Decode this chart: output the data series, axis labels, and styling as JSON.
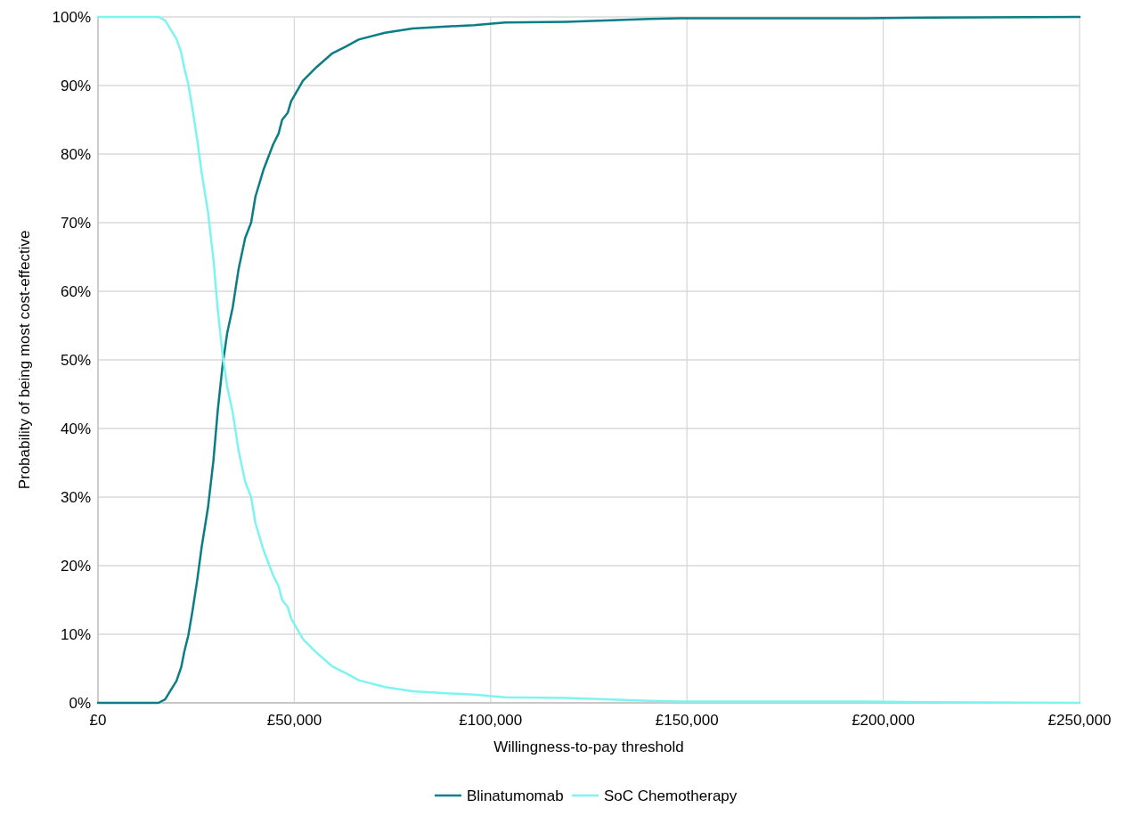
{
  "chart_data": {
    "type": "line",
    "xlabel": "Willingness-to-pay  threshold",
    "ylabel": "Probability of being most cost-effective",
    "x": [
      0,
      15400,
      17100,
      18900,
      20000,
      21200,
      22000,
      23000,
      24100,
      25300,
      26400,
      28000,
      29400,
      30500,
      31700,
      32900,
      34300,
      35800,
      37500,
      39000,
      40100,
      42200,
      44600,
      46000,
      46900,
      48300,
      49200,
      52200,
      55700,
      59700,
      63200,
      66400,
      73100,
      80100,
      88800,
      95800,
      103700,
      119400,
      130800,
      140400,
      148200,
      195000,
      212000,
      250000
    ],
    "series": [
      {
        "name": "Blinatumomab",
        "color": "#0b7d84",
        "values": [
          0,
          0,
          0.5,
          2.2,
          3.2,
          5.2,
          7.5,
          9.8,
          13.5,
          18,
          22.7,
          28.4,
          35.3,
          42.6,
          49,
          53.9,
          57.6,
          63.2,
          67.8,
          70,
          73.8,
          77.8,
          81.4,
          83,
          85,
          86,
          87.7,
          90.7,
          92.7,
          94.7,
          95.7,
          96.7,
          97.7,
          98.3,
          98.6,
          98.8,
          99.2,
          99.3,
          99.5,
          99.7,
          99.8,
          99.8,
          99.9,
          100
        ]
      },
      {
        "name": "SoC Chemotherapy",
        "color": "#7df4f0",
        "values": [
          100,
          100,
          99.5,
          97.8,
          96.8,
          94.8,
          92.5,
          90.2,
          86.5,
          82,
          77.3,
          71.6,
          64.7,
          57.4,
          51,
          46.1,
          42.4,
          36.8,
          32.2,
          30,
          26.2,
          22.2,
          18.6,
          17,
          15,
          14,
          12.3,
          9.3,
          7.3,
          5.3,
          4.3,
          3.3,
          2.3,
          1.7,
          1.4,
          1.2,
          0.8,
          0.7,
          0.5,
          0.3,
          0.2,
          0.2,
          0.1,
          0
        ]
      }
    ],
    "xlim": [
      0,
      250000
    ],
    "xticks": [
      {
        "value": 0,
        "label": "£0"
      },
      {
        "value": 50000,
        "label": "£50,000"
      },
      {
        "value": 100000,
        "label": "£100,000"
      },
      {
        "value": 150000,
        "label": "£150,000"
      },
      {
        "value": 200000,
        "label": "£200,000"
      },
      {
        "value": 250000,
        "label": "£250,000"
      }
    ],
    "ylim": [
      0,
      100
    ],
    "yticks": [
      {
        "value": 0,
        "label": "0%"
      },
      {
        "value": 10,
        "label": "10%"
      },
      {
        "value": 20,
        "label": "20%"
      },
      {
        "value": 30,
        "label": "30%"
      },
      {
        "value": 40,
        "label": "40%"
      },
      {
        "value": 50,
        "label": "50%"
      },
      {
        "value": 60,
        "label": "60%"
      },
      {
        "value": 70,
        "label": "70%"
      },
      {
        "value": 80,
        "label": "80%"
      },
      {
        "value": 90,
        "label": "90%"
      },
      {
        "value": 100,
        "label": "100%"
      }
    ],
    "grid": true,
    "legend": "bottom",
    "marker": "none",
    "line_style": "solid"
  }
}
